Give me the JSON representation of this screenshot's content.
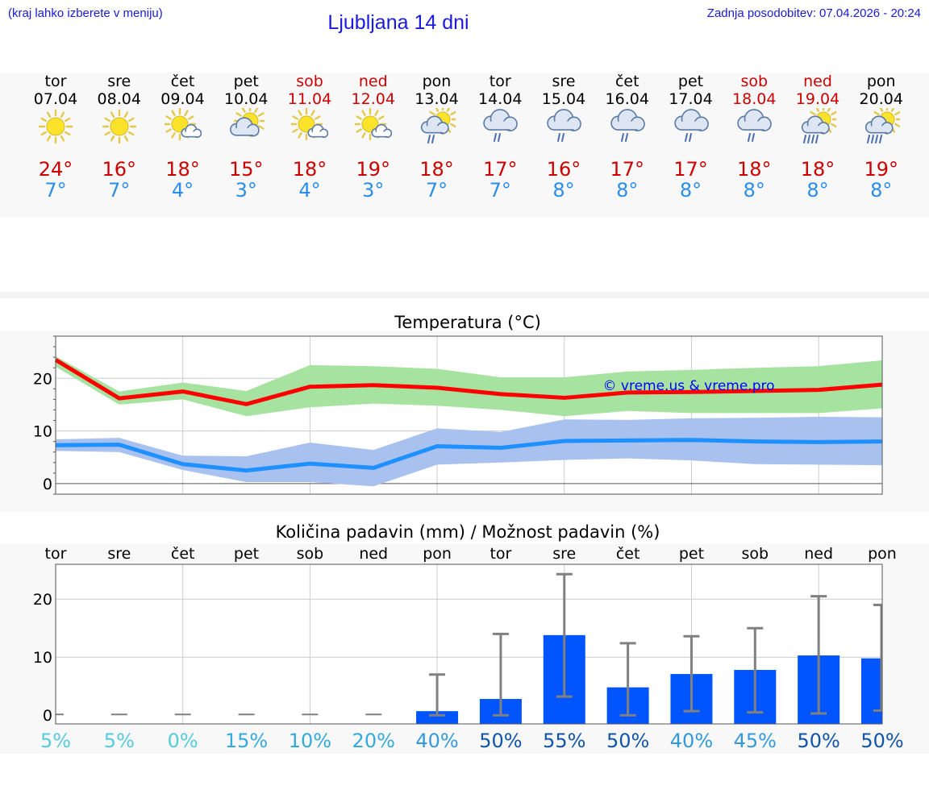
{
  "header": {
    "note": "(kraj lahko izberete v meniju)",
    "title": "Ljubljana 14 dni",
    "updated": "Zadnja posodobitev: 07.04.2026 - 20:24"
  },
  "colors": {
    "link_blue": "#1a1adc",
    "max_temp": "#ff0000",
    "min_temp": "#1e90ff",
    "max_band": "#a6e3a1",
    "min_band": "#a9c1ef",
    "rain_bar": "#0055ff",
    "errbar": "#808080",
    "weekend": "#cc0000"
  },
  "days": [
    {
      "name": "tor",
      "date": "07.04",
      "weekend": false,
      "icon": "sun-icon",
      "tmax": "24°",
      "tmin": "7°"
    },
    {
      "name": "sre",
      "date": "08.04",
      "weekend": false,
      "icon": "sun-icon",
      "tmax": "16°",
      "tmin": "7°"
    },
    {
      "name": "čet",
      "date": "09.04",
      "weekend": false,
      "icon": "sun-small-cloud-icon",
      "tmax": "18°",
      "tmin": "4°"
    },
    {
      "name": "pet",
      "date": "10.04",
      "weekend": false,
      "icon": "sun-behind-cloud-icon",
      "tmax": "15°",
      "tmin": "3°"
    },
    {
      "name": "sob",
      "date": "11.04",
      "weekend": true,
      "icon": "sun-small-cloud-icon",
      "tmax": "18°",
      "tmin": "4°"
    },
    {
      "name": "ned",
      "date": "12.04",
      "weekend": true,
      "icon": "sun-small-cloud-icon",
      "tmax": "19°",
      "tmin": "3°"
    },
    {
      "name": "pon",
      "date": "13.04",
      "weekend": false,
      "icon": "sun-cloud-rain-icon",
      "tmax": "18°",
      "tmin": "7°"
    },
    {
      "name": "tor",
      "date": "14.04",
      "weekend": false,
      "icon": "cloud-rain-icon",
      "tmax": "17°",
      "tmin": "7°"
    },
    {
      "name": "sre",
      "date": "15.04",
      "weekend": false,
      "icon": "cloud-rain-icon",
      "tmax": "16°",
      "tmin": "8°"
    },
    {
      "name": "čet",
      "date": "16.04",
      "weekend": false,
      "icon": "cloud-rain-icon",
      "tmax": "17°",
      "tmin": "8°"
    },
    {
      "name": "pet",
      "date": "17.04",
      "weekend": false,
      "icon": "cloud-rain-icon",
      "tmax": "17°",
      "tmin": "8°"
    },
    {
      "name": "sob",
      "date": "18.04",
      "weekend": true,
      "icon": "cloud-rain-icon",
      "tmax": "18°",
      "tmin": "8°"
    },
    {
      "name": "ned",
      "date": "19.04",
      "weekend": true,
      "icon": "sun-cloud-heavy-rain-icon",
      "tmax": "18°",
      "tmin": "8°"
    },
    {
      "name": "pon",
      "date": "20.04",
      "weekend": false,
      "icon": "sun-cloud-heavy-rain-icon",
      "tmax": "19°",
      "tmin": "8°"
    }
  ],
  "chart_data": [
    {
      "type": "line",
      "title": "Temperatura (°C)",
      "watermark": "© vreme.us & vreme.pro",
      "x": [
        0,
        1,
        2,
        3,
        4,
        5,
        6,
        7,
        8,
        9,
        10,
        11,
        12,
        13
      ],
      "ylim": [
        -2,
        28
      ],
      "yticks": [
        0,
        10,
        20
      ],
      "grid": true,
      "series": [
        {
          "values": [
            23.5,
            16.2,
            17.5,
            15.1,
            18.4,
            18.7,
            18.2,
            17.0,
            16.3,
            17.3,
            17.4,
            17.6,
            17.8,
            18.8
          ],
          "band_low": [
            22.2,
            15.0,
            16.0,
            12.8,
            14.5,
            15.2,
            14.8,
            14.0,
            12.8,
            13.8,
            13.4,
            13.4,
            13.4,
            14.3
          ],
          "band_high": [
            24.2,
            17.5,
            19.2,
            17.6,
            22.5,
            22.3,
            21.8,
            20.2,
            20.2,
            21.3,
            21.6,
            22.0,
            22.3,
            23.4
          ]
        },
        {
          "values": [
            7.3,
            7.4,
            3.7,
            2.5,
            3.8,
            3.0,
            7.1,
            6.8,
            8.1,
            8.2,
            8.3,
            8.0,
            7.9,
            8.0
          ],
          "band_low": [
            6.2,
            6.0,
            2.6,
            0.3,
            0.3,
            -0.5,
            3.6,
            4.0,
            4.5,
            4.8,
            4.4,
            3.7,
            3.6,
            3.5
          ],
          "band_high": [
            8.4,
            8.7,
            5.3,
            5.2,
            7.8,
            6.4,
            10.5,
            9.8,
            12.2,
            12.1,
            12.4,
            12.5,
            12.7,
            12.6
          ]
        }
      ]
    },
    {
      "type": "bar",
      "title": "Količina padavin (mm) / Možnost padavin (%)",
      "categories": [
        "tor",
        "sre",
        "čet",
        "pet",
        "sob",
        "ned",
        "pon",
        "tor",
        "sre",
        "čet",
        "pet",
        "sob",
        "ned",
        "pon"
      ],
      "values": [
        0,
        0,
        0,
        0,
        0,
        0,
        0.7,
        2.8,
        13.8,
        4.8,
        7.1,
        7.8,
        10.3,
        9.8
      ],
      "error_low": [
        0,
        0,
        0,
        0,
        0,
        0,
        0,
        0,
        3.2,
        0,
        0.7,
        0.5,
        0.3,
        0.8
      ],
      "error_high": [
        0,
        0,
        0,
        0,
        0,
        0,
        7.0,
        14.0,
        24.3,
        12.4,
        13.6,
        15.0,
        20.5,
        19.0
      ],
      "probability": [
        "5%",
        "5%",
        "0%",
        "15%",
        "10%",
        "20%",
        "40%",
        "50%",
        "55%",
        "50%",
        "40%",
        "45%",
        "50%",
        "50%"
      ],
      "probability_colors": [
        "#55ccdd",
        "#55ccdd",
        "#55ccdd",
        "#33aadd",
        "#33aadd",
        "#33aadd",
        "#3399dd",
        "#1155aa",
        "#1155aa",
        "#1155aa",
        "#3399dd",
        "#3399dd",
        "#1155aa",
        "#1155aa"
      ],
      "ylim": [
        -1.5,
        26
      ],
      "yticks": [
        0,
        10,
        20
      ],
      "grid": true
    }
  ]
}
